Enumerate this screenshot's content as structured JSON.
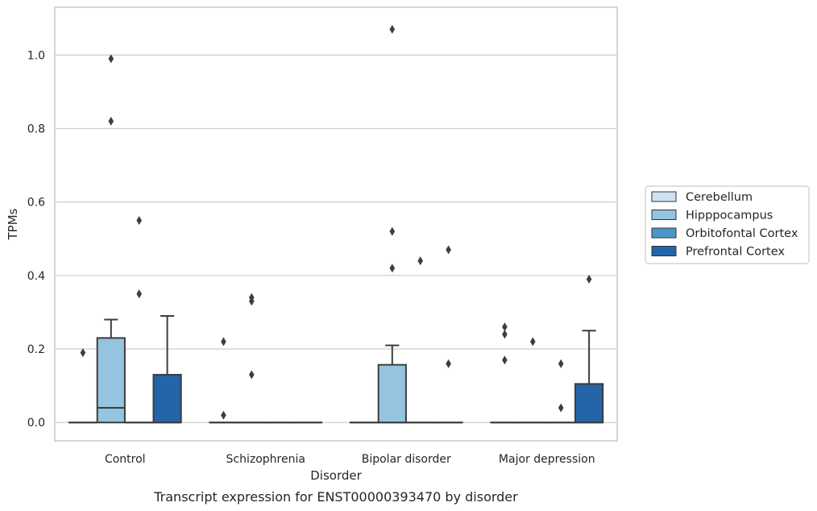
{
  "chart_data": {
    "type": "box",
    "title": "",
    "caption": "Transcript expression for ENST00000393470 by disorder",
    "xlabel": "Disorder",
    "ylabel": "TPMs",
    "ylim": [
      -0.05,
      1.13
    ],
    "yticks": [
      "0.0",
      "0.2",
      "0.4",
      "0.6",
      "0.8",
      "1.0"
    ],
    "grid": "horizontal",
    "legend_position": "right",
    "categories": [
      "Control",
      "Schizophrenia",
      "Bipolar disorder",
      "Major depression"
    ],
    "series": [
      {
        "name": "Cerebellum",
        "color": "#d0e1f2",
        "boxes": [
          {
            "q1": 0,
            "median": 0,
            "q3": 0,
            "whisker_low": 0,
            "whisker_high": 0,
            "outliers": [
              0.19
            ]
          },
          {
            "q1": 0,
            "median": 0,
            "q3": 0,
            "whisker_low": 0,
            "whisker_high": 0,
            "outliers": [
              0.02,
              0.22
            ]
          },
          {
            "q1": 0,
            "median": 0,
            "q3": 0,
            "whisker_low": 0,
            "whisker_high": 0,
            "outliers": []
          },
          {
            "q1": 0,
            "median": 0,
            "q3": 0,
            "whisker_low": 0,
            "whisker_high": 0,
            "outliers": [
              0.17,
              0.24,
              0.26
            ]
          }
        ]
      },
      {
        "name": "Hipppocampus",
        "color": "#94c4df",
        "boxes": [
          {
            "q1": 0,
            "median": 0.04,
            "q3": 0.23,
            "whisker_low": 0,
            "whisker_high": 0.28,
            "outliers": [
              0.82,
              0.99
            ]
          },
          {
            "q1": 0,
            "median": 0,
            "q3": 0,
            "whisker_low": 0,
            "whisker_high": 0,
            "outliers": [
              0.13,
              0.33,
              0.34
            ]
          },
          {
            "q1": 0,
            "median": 0,
            "q3": 0.157,
            "whisker_low": 0,
            "whisker_high": 0.21,
            "outliers": [
              0.42,
              0.52,
              1.07
            ]
          },
          {
            "q1": 0,
            "median": 0,
            "q3": 0,
            "whisker_low": 0,
            "whisker_high": 0,
            "outliers": [
              0.22
            ]
          }
        ]
      },
      {
        "name": "Orbitofontal Cortex",
        "color": "#4a98c9",
        "boxes": [
          {
            "q1": 0,
            "median": 0,
            "q3": 0,
            "whisker_low": 0,
            "whisker_high": 0,
            "outliers": [
              0.35,
              0.55
            ]
          },
          {
            "q1": 0,
            "median": 0,
            "q3": 0,
            "whisker_low": 0,
            "whisker_high": 0,
            "outliers": []
          },
          {
            "q1": 0,
            "median": 0,
            "q3": 0,
            "whisker_low": 0,
            "whisker_high": 0,
            "outliers": [
              0.44
            ]
          },
          {
            "q1": 0,
            "median": 0,
            "q3": 0,
            "whisker_low": 0,
            "whisker_high": 0,
            "outliers": [
              0.04,
              0.16
            ]
          }
        ]
      },
      {
        "name": "Prefrontal Cortex",
        "color": "#2464a8",
        "boxes": [
          {
            "q1": 0,
            "median": 0,
            "q3": 0.13,
            "whisker_low": 0,
            "whisker_high": 0.29,
            "outliers": []
          },
          {
            "q1": 0,
            "median": 0,
            "q3": 0,
            "whisker_low": 0,
            "whisker_high": 0,
            "outliers": []
          },
          {
            "q1": 0,
            "median": 0,
            "q3": 0,
            "whisker_low": 0,
            "whisker_high": 0,
            "outliers": [
              0.16,
              0.47
            ]
          },
          {
            "q1": 0,
            "median": 0,
            "q3": 0.105,
            "whisker_low": 0,
            "whisker_high": 0.25,
            "outliers": [
              0.39
            ]
          }
        ]
      }
    ]
  }
}
